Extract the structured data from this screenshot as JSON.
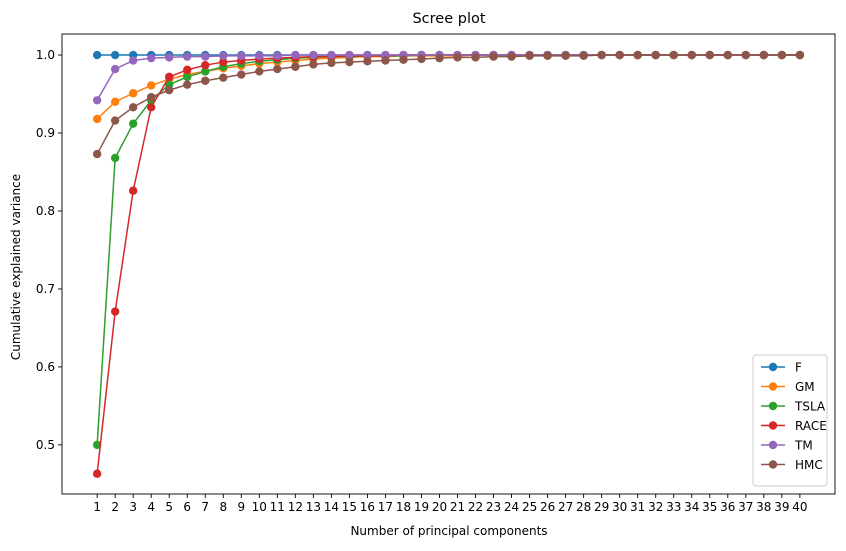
{
  "chart_data": {
    "type": "line",
    "title": "Scree plot",
    "xlabel": "Number of principal components",
    "ylabel": "Cumulative explained variance",
    "x": [
      1,
      2,
      3,
      4,
      5,
      6,
      7,
      8,
      9,
      10,
      11,
      12,
      13,
      14,
      15,
      16,
      17,
      18,
      19,
      20,
      21,
      22,
      23,
      24,
      25,
      26,
      27,
      28,
      29,
      30,
      31,
      32,
      33,
      34,
      35,
      36,
      37,
      38,
      39,
      40
    ],
    "xticks": [
      "1",
      "2",
      "3",
      "4",
      "5",
      "6",
      "7",
      "8",
      "9",
      "10",
      "11",
      "12",
      "13",
      "14",
      "15",
      "16",
      "17",
      "18",
      "19",
      "20",
      "21",
      "22",
      "23",
      "24",
      "25",
      "26",
      "27",
      "28",
      "29",
      "30",
      "31",
      "32",
      "33",
      "34",
      "35",
      "36",
      "37",
      "38",
      "39",
      "40"
    ],
    "yticks": [
      "0.5",
      "0.6",
      "0.7",
      "0.8",
      "0.9",
      "1.0"
    ],
    "ytick_values": [
      0.5,
      0.6,
      0.7,
      0.8,
      0.9,
      1.0
    ],
    "ylim": [
      0.437,
      1.027
    ],
    "xlim": [
      -0.95,
      41.95
    ],
    "grid": false,
    "legend_position": "lower-right",
    "series": [
      {
        "name": "F",
        "color": "#1f77b4",
        "values": [
          1.0,
          1.0,
          1.0,
          1.0,
          1.0,
          1.0,
          1.0,
          1.0,
          1.0,
          1.0,
          1.0,
          1.0,
          1.0,
          1.0,
          1.0,
          1.0,
          1.0,
          1.0,
          1.0,
          1.0,
          1.0,
          1.0,
          1.0,
          1.0,
          1.0,
          1.0,
          1.0,
          1.0,
          1.0,
          1.0,
          1.0,
          1.0,
          1.0,
          1.0,
          1.0,
          1.0,
          1.0,
          1.0,
          1.0,
          1.0
        ]
      },
      {
        "name": "GM",
        "color": "#ff7f0e",
        "values": [
          0.918,
          0.94,
          0.951,
          0.961,
          0.969,
          0.975,
          0.979,
          0.983,
          0.986,
          0.989,
          0.991,
          0.993,
          0.995,
          0.996,
          0.997,
          0.998,
          0.998,
          0.999,
          0.999,
          0.999,
          0.999,
          1.0,
          1.0,
          1.0,
          1.0,
          1.0,
          1.0,
          1.0,
          1.0,
          1.0,
          1.0,
          1.0,
          1.0,
          1.0,
          1.0,
          1.0,
          1.0,
          1.0,
          1.0,
          1.0
        ]
      },
      {
        "name": "TSLA",
        "color": "#2ca02c",
        "values": [
          0.5,
          0.868,
          0.912,
          0.942,
          0.962,
          0.972,
          0.979,
          0.985,
          0.989,
          0.992,
          0.994,
          0.996,
          0.997,
          0.998,
          0.998,
          0.999,
          0.999,
          0.999,
          1.0,
          1.0,
          1.0,
          1.0,
          1.0,
          1.0,
          1.0,
          1.0,
          1.0,
          1.0,
          1.0,
          1.0,
          1.0,
          1.0,
          1.0,
          1.0,
          1.0,
          1.0,
          1.0,
          1.0,
          1.0,
          1.0
        ]
      },
      {
        "name": "RACE",
        "color": "#d62728",
        "values": [
          0.463,
          0.671,
          0.826,
          0.933,
          0.972,
          0.981,
          0.987,
          0.991,
          0.993,
          0.995,
          0.996,
          0.997,
          0.998,
          0.998,
          0.999,
          0.999,
          0.999,
          1.0,
          1.0,
          1.0,
          1.0,
          1.0,
          1.0,
          1.0,
          1.0,
          1.0,
          1.0,
          1.0,
          1.0,
          1.0,
          1.0,
          1.0,
          1.0,
          1.0,
          1.0,
          1.0,
          1.0,
          1.0,
          1.0,
          1.0
        ]
      },
      {
        "name": "TM",
        "color": "#9467bd",
        "values": [
          0.942,
          0.982,
          0.993,
          0.996,
          0.997,
          0.998,
          0.998,
          0.999,
          0.999,
          0.999,
          0.999,
          1.0,
          1.0,
          1.0,
          1.0,
          1.0,
          1.0,
          1.0,
          1.0,
          1.0,
          1.0,
          1.0,
          1.0,
          1.0,
          1.0,
          1.0,
          1.0,
          1.0,
          1.0,
          1.0,
          1.0,
          1.0,
          1.0,
          1.0,
          1.0,
          1.0,
          1.0,
          1.0,
          1.0,
          1.0
        ]
      },
      {
        "name": "HMC",
        "color": "#8c564b",
        "values": [
          0.873,
          0.916,
          0.933,
          0.946,
          0.955,
          0.962,
          0.967,
          0.971,
          0.975,
          0.979,
          0.982,
          0.985,
          0.988,
          0.99,
          0.991,
          0.992,
          0.993,
          0.994,
          0.995,
          0.996,
          0.997,
          0.997,
          0.998,
          0.998,
          0.999,
          0.999,
          0.999,
          0.999,
          1.0,
          1.0,
          1.0,
          1.0,
          1.0,
          1.0,
          1.0,
          1.0,
          1.0,
          1.0,
          1.0,
          1.0
        ]
      }
    ]
  }
}
